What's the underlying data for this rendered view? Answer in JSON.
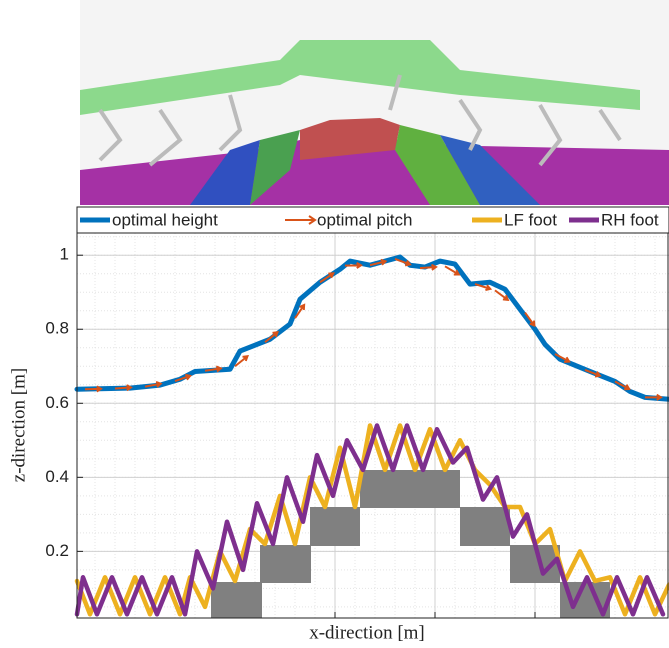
{
  "chart_data": {
    "type": "line",
    "xlabel": "x-direction [m]",
    "ylabel": "z-direction [m]",
    "xlim": [
      -2.58,
      3.34
    ],
    "xticks": [
      0,
      1,
      2
    ],
    "ylim": [
      0.02,
      1.06
    ],
    "yticks": [
      0.2,
      0.4,
      0.6,
      0.8,
      1
    ],
    "grid": true,
    "minor_grid": true,
    "legend": "top",
    "series": [
      {
        "name": "optimal height",
        "color": "#0072bd",
        "style": "line",
        "x": [
          -2.58,
          -2.05,
          -1.75,
          -1.55,
          -1.4,
          -1.05,
          -0.95,
          -0.65,
          -0.45,
          -0.35,
          -0.15,
          0.05,
          0.15,
          0.35,
          0.5,
          0.65,
          0.75,
          0.9,
          1.05,
          1.2,
          1.35,
          1.55,
          1.7,
          1.85,
          2.0,
          2.1,
          2.25,
          2.55,
          2.8,
          2.95,
          3.1,
          3.34
        ],
        "values": [
          0.638,
          0.641,
          0.649,
          0.665,
          0.686,
          0.692,
          0.741,
          0.773,
          0.814,
          0.881,
          0.927,
          0.962,
          0.984,
          0.973,
          0.984,
          0.995,
          0.973,
          0.968,
          0.984,
          0.976,
          0.922,
          0.927,
          0.908,
          0.854,
          0.8,
          0.759,
          0.719,
          0.686,
          0.659,
          0.632,
          0.616,
          0.611
        ]
      },
      {
        "name": "optimal pitch",
        "color": "#d95319",
        "style": "arrow",
        "x": [
          -2.5,
          -2.2,
          -1.9,
          -1.6,
          -1.3,
          -1.0,
          -0.7,
          -0.4,
          -0.15,
          0.1,
          0.35,
          0.6,
          0.85,
          1.1,
          1.4,
          1.6,
          1.9,
          2.2,
          2.5,
          2.8,
          3.1
        ],
        "values": [
          0.638,
          0.64,
          0.645,
          0.66,
          0.688,
          0.7,
          0.765,
          0.83,
          0.927,
          0.972,
          0.973,
          0.99,
          0.965,
          0.97,
          0.922,
          0.905,
          0.845,
          0.733,
          0.69,
          0.659,
          0.616
        ]
      },
      {
        "name": "LF foot",
        "color": "#edb120",
        "style": "line",
        "x": [
          -2.58,
          -2.45,
          -2.3,
          -2.15,
          -2.0,
          -1.85,
          -1.7,
          -1.55,
          -1.45,
          -1.3,
          -1.15,
          -1.0,
          -0.85,
          -0.7,
          -0.55,
          -0.4,
          -0.25,
          -0.1,
          0.05,
          0.2,
          0.35,
          0.5,
          0.65,
          0.8,
          0.95,
          1.1,
          1.25,
          1.4,
          1.55,
          1.7,
          1.85,
          2.0,
          2.15,
          2.3,
          2.45,
          2.6,
          2.75,
          2.9,
          3.05,
          3.2,
          3.34
        ],
        "values": [
          0.12,
          0.03,
          0.13,
          0.03,
          0.13,
          0.03,
          0.13,
          0.03,
          0.13,
          0.05,
          0.2,
          0.12,
          0.26,
          0.22,
          0.35,
          0.22,
          0.4,
          0.32,
          0.48,
          0.32,
          0.54,
          0.42,
          0.54,
          0.42,
          0.53,
          0.42,
          0.5,
          0.42,
          0.38,
          0.32,
          0.32,
          0.22,
          0.26,
          0.12,
          0.2,
          0.12,
          0.13,
          0.03,
          0.13,
          0.03,
          0.11
        ]
      },
      {
        "name": "RH foot",
        "color": "#7e2f8e",
        "style": "line",
        "x": [
          -2.58,
          -2.52,
          -2.38,
          -2.23,
          -2.08,
          -1.93,
          -1.78,
          -1.63,
          -1.5,
          -1.38,
          -1.22,
          -1.08,
          -0.92,
          -0.78,
          -0.62,
          -0.48,
          -0.32,
          -0.18,
          -0.02,
          0.12,
          0.28,
          0.42,
          0.58,
          0.72,
          0.88,
          1.02,
          1.18,
          1.32,
          1.48,
          1.62,
          1.78,
          1.92,
          2.08,
          2.22,
          2.38,
          2.52,
          2.68,
          2.82,
          2.98,
          3.12,
          3.28
        ],
        "values": [
          0.03,
          0.13,
          0.03,
          0.13,
          0.03,
          0.13,
          0.03,
          0.13,
          0.03,
          0.2,
          0.1,
          0.28,
          0.15,
          0.33,
          0.22,
          0.4,
          0.28,
          0.46,
          0.35,
          0.5,
          0.42,
          0.54,
          0.42,
          0.54,
          0.42,
          0.53,
          0.44,
          0.48,
          0.34,
          0.4,
          0.24,
          0.3,
          0.14,
          0.18,
          0.05,
          0.13,
          0.03,
          0.13,
          0.03,
          0.13,
          0.03
        ]
      }
    ]
  }
}
